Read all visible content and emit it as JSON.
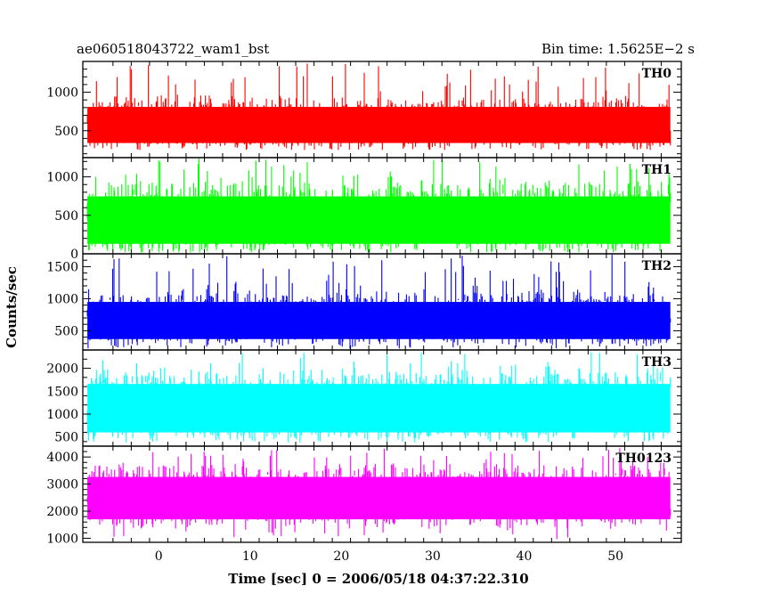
{
  "header": {
    "left": "ae060518043722_wam1_bst",
    "right": "Bin time: 1.5625E−2 s"
  },
  "chart_data": {
    "type": "line",
    "xlabel": "Time [sec] 0 = 2006/05/18 04:37:22.310",
    "ylabel": "Counts/sec",
    "xlim": [
      -8.3,
      57.2
    ],
    "x_ticks": [
      0,
      10,
      20,
      30,
      40,
      50
    ],
    "x_tick_labels": [
      "0",
      "10",
      "20",
      "30",
      "40",
      "50"
    ],
    "x_data_range": [
      -7.8,
      56.0
    ],
    "bin_time_s": 0.015625,
    "grid": false,
    "panels": [
      {
        "name": "TH0",
        "color": "#ff0000",
        "ylim": [
          150,
          1400
        ],
        "yticks": [
          500,
          1000
        ],
        "ytick_labels": [
          "500",
          "1000"
        ],
        "signal": {
          "typical_low": 340,
          "typical_high": 850,
          "min": 250,
          "max": 1380
        }
      },
      {
        "name": "TH1",
        "color": "#00ff00",
        "ylim": [
          0,
          1250
        ],
        "yticks": [
          0,
          500,
          1000
        ],
        "ytick_labels": [
          "0",
          "500",
          "1000"
        ],
        "signal": {
          "typical_low": 130,
          "typical_high": 800,
          "min": 20,
          "max": 1240
        }
      },
      {
        "name": "TH2",
        "color": "#0000ff",
        "ylim": [
          200,
          1700
        ],
        "yticks": [
          500,
          1000,
          1500
        ],
        "ytick_labels": [
          "500",
          "1000",
          "1500"
        ],
        "signal": {
          "typical_low": 370,
          "typical_high": 1000,
          "min": 220,
          "max": 1690
        }
      },
      {
        "name": "TH3",
        "color": "#00ffff",
        "ylim": [
          300,
          2400
        ],
        "yticks": [
          500,
          1000,
          1500,
          2000
        ],
        "ytick_labels": [
          "500",
          "1000",
          "1500",
          "2000"
        ],
        "signal": {
          "typical_low": 600,
          "typical_high": 1750,
          "min": 380,
          "max": 2380
        }
      },
      {
        "name": "TH0123",
        "color": "#ff00ff",
        "ylim": [
          850,
          4400
        ],
        "yticks": [
          1000,
          2000,
          3000,
          4000
        ],
        "ytick_labels": [
          "1000",
          "2000",
          "3000",
          "4000"
        ],
        "signal": {
          "typical_low": 1700,
          "typical_high": 3400,
          "min": 950,
          "max": 4350
        }
      }
    ]
  }
}
